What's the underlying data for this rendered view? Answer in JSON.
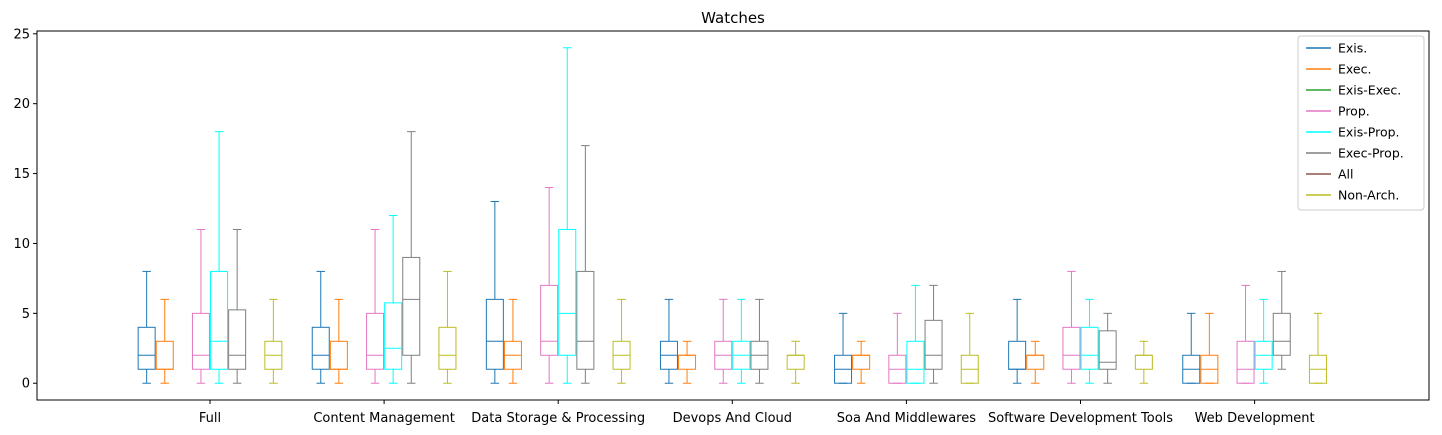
{
  "chart_data": {
    "type": "box",
    "title": "Watches",
    "xlabel": "",
    "ylabel": "",
    "ylim": [
      -1.2,
      25.2
    ],
    "yticks": [
      0,
      5,
      10,
      15,
      20,
      25
    ],
    "grid": false,
    "legend_position": "top-right",
    "categories": [
      "Full",
      "Content Management",
      "Data Storage & Processing",
      "Devops And Cloud",
      "Soa And Middlewares",
      "Software Development Tools",
      "Web Development"
    ],
    "series": [
      {
        "name": "Exis.",
        "color": "#1f77b4",
        "boxes": [
          {
            "whislo": 0,
            "q1": 1,
            "med": 2,
            "q3": 4,
            "whishi": 8
          },
          {
            "whislo": 0,
            "q1": 1,
            "med": 2,
            "q3": 4,
            "whishi": 8
          },
          {
            "whislo": 0,
            "q1": 1,
            "med": 3,
            "q3": 6,
            "whishi": 13
          },
          {
            "whislo": 0,
            "q1": 1,
            "med": 2,
            "q3": 3,
            "whishi": 6
          },
          {
            "whislo": 0,
            "q1": 0,
            "med": 1,
            "q3": 2,
            "whishi": 5
          },
          {
            "whislo": 0,
            "q1": 1,
            "med": 1,
            "q3": 3,
            "whishi": 6
          },
          {
            "whislo": 0,
            "q1": 0,
            "med": 1,
            "q3": 2,
            "whishi": 5
          }
        ]
      },
      {
        "name": "Exec.",
        "color": "#ff7f0e",
        "boxes": [
          {
            "whislo": 0,
            "q1": 1,
            "med": 1,
            "q3": 3,
            "whishi": 6
          },
          {
            "whislo": 0,
            "q1": 1,
            "med": 1,
            "q3": 3,
            "whishi": 6
          },
          {
            "whislo": 0,
            "q1": 1,
            "med": 2,
            "q3": 3,
            "whishi": 6
          },
          {
            "whislo": 0,
            "q1": 1,
            "med": 2,
            "q3": 2,
            "whishi": 3
          },
          {
            "whislo": 0,
            "q1": 1,
            "med": 2,
            "q3": 2,
            "whishi": 3
          },
          {
            "whislo": 0,
            "q1": 1,
            "med": 2,
            "q3": 2,
            "whishi": 3
          },
          {
            "whislo": 0,
            "q1": 0,
            "med": 1,
            "q3": 2,
            "whishi": 5
          }
        ]
      },
      {
        "name": "Exis-Exec.",
        "color": "#2ca02c",
        "boxes": [
          null,
          null,
          null,
          null,
          null,
          null,
          null
        ]
      },
      {
        "name": "Prop.",
        "color": "#e377c2",
        "boxes": [
          {
            "whislo": 0,
            "q1": 1,
            "med": 2,
            "q3": 5,
            "whishi": 11
          },
          {
            "whislo": 0,
            "q1": 1,
            "med": 2,
            "q3": 5,
            "whishi": 11
          },
          {
            "whislo": 0,
            "q1": 2,
            "med": 3,
            "q3": 7,
            "whishi": 14
          },
          {
            "whislo": 0,
            "q1": 1,
            "med": 2,
            "q3": 3,
            "whishi": 6
          },
          {
            "whislo": 0,
            "q1": 0,
            "med": 1,
            "q3": 2,
            "whishi": 5
          },
          {
            "whislo": 0,
            "q1": 1,
            "med": 2,
            "q3": 4,
            "whishi": 8
          },
          {
            "whislo": 0,
            "q1": 0,
            "med": 1,
            "q3": 3,
            "whishi": 7
          }
        ]
      },
      {
        "name": "Exis-Prop.",
        "color": "#00ffff",
        "boxes": [
          {
            "whislo": 0,
            "q1": 1,
            "med": 3,
            "q3": 8,
            "whishi": 18
          },
          {
            "whislo": 0,
            "q1": 1,
            "med": 2.5,
            "q3": 5.75,
            "whishi": 12
          },
          {
            "whislo": 0,
            "q1": 2,
            "med": 5,
            "q3": 11,
            "whishi": 24
          },
          {
            "whislo": 0,
            "q1": 1,
            "med": 2,
            "q3": 3,
            "whishi": 6
          },
          {
            "whislo": 0,
            "q1": 0,
            "med": 1,
            "q3": 3,
            "whishi": 7
          },
          {
            "whislo": 0,
            "q1": 1,
            "med": 2,
            "q3": 4,
            "whishi": 6
          },
          {
            "whislo": 0,
            "q1": 1,
            "med": 2,
            "q3": 3,
            "whishi": 6
          }
        ]
      },
      {
        "name": "Exec-Prop.",
        "color": "#7f7f7f",
        "boxes": [
          {
            "whislo": 0,
            "q1": 1,
            "med": 2,
            "q3": 5.25,
            "whishi": 11
          },
          {
            "whislo": 0,
            "q1": 2,
            "med": 6,
            "q3": 9,
            "whishi": 18
          },
          {
            "whislo": 0,
            "q1": 1,
            "med": 3,
            "q3": 8,
            "whishi": 17
          },
          {
            "whislo": 0,
            "q1": 1,
            "med": 2,
            "q3": 3,
            "whishi": 6
          },
          {
            "whislo": 0,
            "q1": 1,
            "med": 2,
            "q3": 4.5,
            "whishi": 7
          },
          {
            "whislo": 0,
            "q1": 1,
            "med": 1.5,
            "q3": 3.75,
            "whishi": 5
          },
          {
            "whislo": 1,
            "q1": 2,
            "med": 3,
            "q3": 5,
            "whishi": 8
          }
        ]
      },
      {
        "name": "All",
        "color": "#8c564b",
        "boxes": [
          null,
          null,
          null,
          null,
          null,
          null,
          null
        ]
      },
      {
        "name": "Non-Arch.",
        "color": "#bcbd22",
        "boxes": [
          {
            "whislo": 0,
            "q1": 1,
            "med": 2,
            "q3": 3,
            "whishi": 6
          },
          {
            "whislo": 0,
            "q1": 1,
            "med": 2,
            "q3": 4,
            "whishi": 8
          },
          {
            "whislo": 0,
            "q1": 1,
            "med": 2,
            "q3": 3,
            "whishi": 6
          },
          {
            "whislo": 0,
            "q1": 1,
            "med": 2,
            "q3": 2,
            "whishi": 3
          },
          {
            "whislo": 0,
            "q1": 0,
            "med": 1,
            "q3": 2,
            "whishi": 5
          },
          {
            "whislo": 0,
            "q1": 1,
            "med": 2,
            "q3": 2,
            "whishi": 3
          },
          {
            "whislo": 0,
            "q1": 0,
            "med": 1,
            "q3": 2,
            "whishi": 5
          }
        ]
      }
    ]
  }
}
